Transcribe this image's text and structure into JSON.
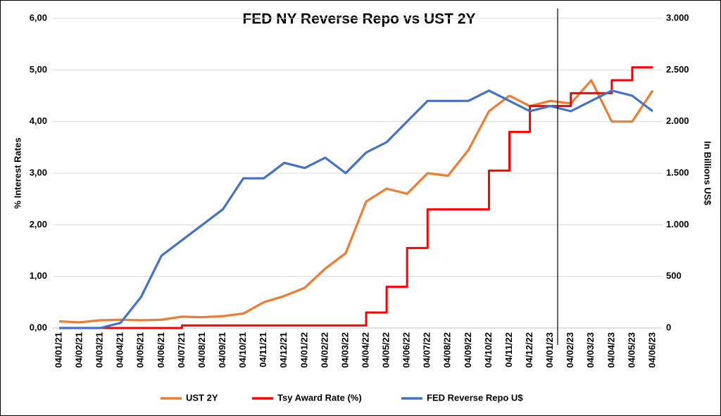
{
  "chart_data": {
    "type": "line",
    "title": "FED NY Reverse Repo vs UST 2Y",
    "ylabel": "% Interest Rates",
    "y2label": "In Billions US$",
    "categories": [
      "04/01/21",
      "04/02/21",
      "04/03/21",
      "04/04/21",
      "04/05/21",
      "04/06/21",
      "04/07/21",
      "04/08/21",
      "04/09/21",
      "04/10/21",
      "04/11/21",
      "04/12/21",
      "04/01/22",
      "04/02/22",
      "04/03/22",
      "04/04/22",
      "04/05/22",
      "04/06/22",
      "04/07/22",
      "04/08/22",
      "04/09/22",
      "04/10/22",
      "04/11/22",
      "04/12/22",
      "04/01/23",
      "04/02/23",
      "04/03/23",
      "04/04/23",
      "04/05/23",
      "04/06/23"
    ],
    "series": [
      {
        "name": "UST 2Y",
        "color": "#ED7D31",
        "axis": "y",
        "values": [
          0.13,
          0.11,
          0.15,
          0.16,
          0.15,
          0.16,
          0.22,
          0.21,
          0.23,
          0.28,
          0.5,
          0.62,
          0.78,
          1.15,
          1.45,
          2.45,
          2.7,
          2.6,
          3.0,
          2.95,
          3.45,
          4.2,
          4.5,
          4.3,
          4.4,
          4.35,
          4.8,
          4.0,
          4.0,
          4.6
        ]
      },
      {
        "name": "Tsy Award Rate (%)",
        "color": "#FF0000",
        "axis": "y",
        "drawstyle": "steps-post",
        "values": [
          0,
          0,
          0,
          0,
          0,
          0,
          0.05,
          0.05,
          0.05,
          0.05,
          0.05,
          0.05,
          0.05,
          0.05,
          0.05,
          0.3,
          0.8,
          1.55,
          2.3,
          2.3,
          2.3,
          3.05,
          3.8,
          4.3,
          4.3,
          4.55,
          4.55,
          4.8,
          5.05,
          5.05
        ]
      },
      {
        "name": "FED Reverse Repo U$",
        "color": "#4472C4",
        "axis": "y2",
        "values": [
          0,
          0,
          0,
          50,
          300,
          700,
          850,
          1000,
          1150,
          1450,
          1450,
          1600,
          1550,
          1650,
          1500,
          1700,
          1800,
          2000,
          2200,
          2200,
          2200,
          2300,
          2200,
          2100,
          2150,
          2100,
          2200,
          2300,
          2250,
          2100
        ]
      }
    ],
    "ylim": [
      0,
      6
    ],
    "yticks": [
      {
        "value": 0,
        "label": "0,00"
      },
      {
        "value": 1,
        "label": "1,00"
      },
      {
        "value": 2,
        "label": "2,00"
      },
      {
        "value": 3,
        "label": "3,00"
      },
      {
        "value": 4,
        "label": "4,00"
      },
      {
        "value": 5,
        "label": "5,00"
      },
      {
        "value": 6,
        "label": "6,00"
      }
    ],
    "y2lim": [
      0,
      3000
    ],
    "y2ticks": [
      0,
      500,
      {
        "value": 1000,
        "label": "1.000"
      },
      {
        "value": 1500,
        "label": "1.500"
      },
      {
        "value": 2000,
        "label": "2.000"
      },
      {
        "value": 2500,
        "label": "2.500"
      },
      {
        "value": 3000,
        "label": "3.000"
      }
    ],
    "grid": true,
    "legend": "bottom"
  }
}
